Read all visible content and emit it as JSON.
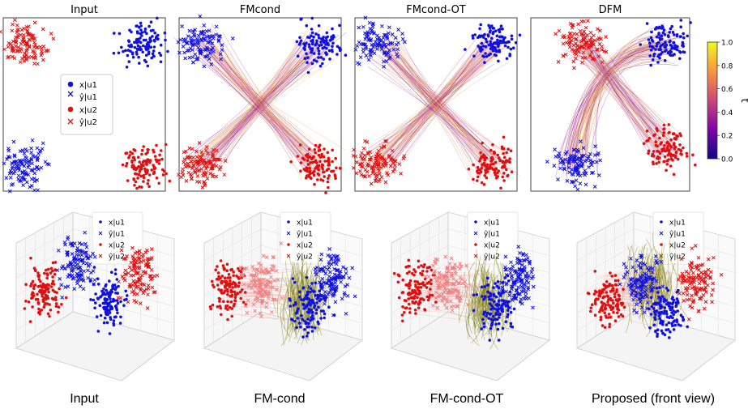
{
  "figure": {
    "top_row_titles": [
      "Input",
      "FMcond",
      "FMcond-OT",
      "DFM"
    ],
    "bottom_row_captions": [
      "Input",
      "FM-cond",
      "FM-cond-OT",
      "Proposed (front view)"
    ]
  },
  "legend": {
    "entries": [
      {
        "label": "x|u1",
        "marker": "dot",
        "color": "#1010e0"
      },
      {
        "label": "ŷ|u1",
        "marker": "cross",
        "color": "#1010e0"
      },
      {
        "label": "x|u2",
        "marker": "dot",
        "color": "#e01010"
      },
      {
        "label": "ŷ|u2",
        "marker": "cross",
        "color": "#e01010"
      }
    ]
  },
  "colorbar": {
    "label": "t",
    "ticks": [
      "0.0",
      "0.2",
      "0.4",
      "0.6",
      "0.8",
      "1.0"
    ],
    "range": [
      0.0,
      1.0
    ],
    "colormap": "plasma"
  },
  "chart_data": [
    {
      "type": "scatter",
      "title": "Input",
      "clusters": [
        {
          "name": "x|u1",
          "marker": "dot",
          "color": "#1010e0",
          "center": [
            1,
            1
          ]
        },
        {
          "name": "ŷ|u1",
          "marker": "cross",
          "color": "#1010e0",
          "center": [
            -1,
            -1
          ]
        },
        {
          "name": "x|u2",
          "marker": "dot",
          "color": "#e01010",
          "center": [
            1,
            -1
          ]
        },
        {
          "name": "ŷ|u2",
          "marker": "cross",
          "color": "#e01010",
          "center": [
            -1,
            1
          ]
        }
      ]
    },
    {
      "type": "scatter",
      "title": "FMcond",
      "flow": "straight-crossing",
      "clusters": [
        {
          "name": "x|u1",
          "marker": "dot",
          "color": "#1010e0",
          "center": [
            1,
            1
          ]
        },
        {
          "name": "ŷ|u1",
          "marker": "cross",
          "color": "#1010e0",
          "center": [
            -1,
            1
          ]
        },
        {
          "name": "x|u2",
          "marker": "dot",
          "color": "#e01010",
          "center": [
            1,
            -1
          ]
        },
        {
          "name": "ŷ|u2",
          "marker": "cross",
          "color": "#e01010",
          "center": [
            -1,
            -1
          ]
        }
      ]
    },
    {
      "type": "scatter",
      "title": "FMcond-OT",
      "flow": "straight-crossing",
      "clusters": [
        {
          "name": "x|u1",
          "marker": "dot",
          "color": "#1010e0",
          "center": [
            1,
            1
          ]
        },
        {
          "name": "ŷ|u1",
          "marker": "cross",
          "color": "#1010e0",
          "center": [
            -1,
            1
          ]
        },
        {
          "name": "x|u2",
          "marker": "dot",
          "color": "#e01010",
          "center": [
            1,
            -1
          ]
        },
        {
          "name": "ŷ|u2",
          "marker": "cross",
          "color": "#e01010",
          "center": [
            -1,
            -1
          ]
        }
      ]
    },
    {
      "type": "scatter",
      "title": "DFM",
      "flow": "curved-arc",
      "clusters": [
        {
          "name": "x|u1",
          "marker": "dot",
          "color": "#1010e0",
          "center": [
            1,
            1
          ]
        },
        {
          "name": "ŷ|u1",
          "marker": "cross",
          "color": "#1010e0",
          "center": [
            -0.6,
            -1
          ]
        },
        {
          "name": "x|u2",
          "marker": "dot",
          "color": "#e01010",
          "center": [
            1,
            -0.7
          ]
        },
        {
          "name": "ŷ|u2",
          "marker": "cross",
          "color": "#e01010",
          "center": [
            -0.5,
            1
          ]
        }
      ]
    }
  ]
}
